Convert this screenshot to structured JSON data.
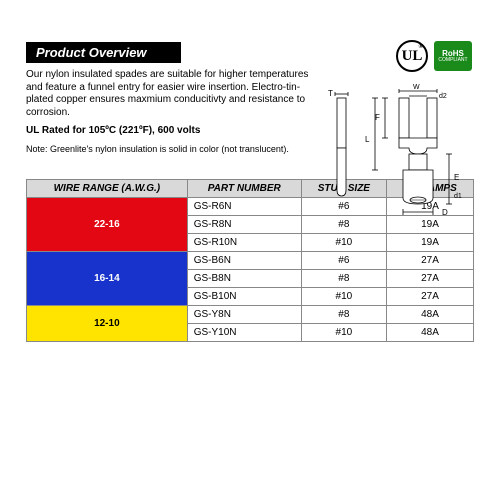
{
  "header": {
    "title": "Product Overview"
  },
  "description": {
    "para": "Our nylon insulated spades are suitable for higher temperatures and feature a funnel entry for easier wire insertion. Electro-tin-plated copper ensures maxmium conducitivty and resistance to corrosion.",
    "rating": "UL Rated for 105ºC (221ºF), 600 volts",
    "note": "Note: Greenlite's nylon insulation is solid in color (not translucent)."
  },
  "badges": {
    "ul_text": "UL",
    "rohs_line1": "RoHS",
    "rohs_line2": "COMPLIANT",
    "rohs_bg": "#1a8a1a"
  },
  "diagram": {
    "labels": {
      "T": "T",
      "W": "W",
      "d2": "d2",
      "F": "F",
      "L": "L",
      "E": "E",
      "d1": "d1",
      "D": "D"
    },
    "stroke": "#000000"
  },
  "table": {
    "header_bg": "#d9d9d9",
    "columns": [
      "WIRE RANGE (A.W.G.)",
      "PART NUMBER",
      "STUD SIZE",
      "MAX AMPS"
    ],
    "groups": [
      {
        "range": "22-16",
        "color": "#e30613",
        "rows": [
          {
            "part": "GS-R6N",
            "stud": "#6",
            "amps": "19A"
          },
          {
            "part": "GS-R8N",
            "stud": "#8",
            "amps": "19A"
          },
          {
            "part": "GS-R10N",
            "stud": "#10",
            "amps": "19A"
          }
        ]
      },
      {
        "range": "16-14",
        "color": "#1733cc",
        "rows": [
          {
            "part": "GS-B6N",
            "stud": "#6",
            "amps": "27A"
          },
          {
            "part": "GS-B8N",
            "stud": "#8",
            "amps": "27A"
          },
          {
            "part": "GS-B10N",
            "stud": "#10",
            "amps": "27A"
          }
        ]
      },
      {
        "range": "12-10",
        "color": "#ffe400",
        "rows": [
          {
            "part": "GS-Y8N",
            "stud": "#8",
            "amps": "48A"
          },
          {
            "part": "GS-Y10N",
            "stud": "#10",
            "amps": "48A"
          }
        ]
      }
    ]
  }
}
